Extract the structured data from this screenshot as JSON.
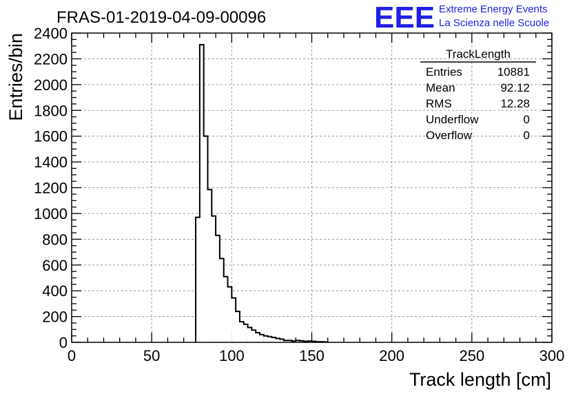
{
  "chart_data": {
    "type": "bar",
    "title": "FRAS-01-2019-04-09-00096",
    "xlabel": "Track length [cm]",
    "ylabel": "Entries/bin",
    "xlim": [
      0,
      300
    ],
    "ylim": [
      0,
      2400
    ],
    "grid": true,
    "bin_width": 2.5,
    "x_ticks": [
      0,
      50,
      100,
      150,
      200,
      250,
      300
    ],
    "y_ticks": [
      0,
      200,
      400,
      600,
      800,
      1000,
      1200,
      1400,
      1600,
      1800,
      2000,
      2200,
      2400
    ],
    "x": [
      77.5,
      80,
      82.5,
      85,
      87.5,
      90,
      92.5,
      95,
      97.5,
      100,
      102.5,
      105,
      107.5,
      110,
      112.5,
      115,
      117.5,
      120,
      122.5,
      125,
      127.5,
      130,
      132.5,
      135,
      137.5,
      140,
      142.5,
      145,
      147.5,
      150,
      152.5,
      155,
      157.5
    ],
    "values": [
      970,
      2310,
      1600,
      1185,
      980,
      830,
      650,
      510,
      430,
      345,
      240,
      160,
      140,
      115,
      95,
      75,
      60,
      50,
      45,
      38,
      30,
      25,
      15,
      15,
      10,
      15,
      12,
      8,
      10,
      8,
      5,
      5,
      3
    ]
  },
  "stats_box": {
    "title": "TrackLength",
    "rows": [
      {
        "label": "Entries",
        "value": "10881"
      },
      {
        "label": "Mean",
        "value": "92.12"
      },
      {
        "label": "RMS",
        "value": "12.28"
      },
      {
        "label": "Underflow",
        "value": "0"
      },
      {
        "label": "Overflow",
        "value": "0"
      }
    ]
  },
  "logo": {
    "text": "EEE",
    "line1": "Extreme Energy Events",
    "line2": "La Scienza nelle Scuole",
    "color": "#1f1fe6"
  }
}
